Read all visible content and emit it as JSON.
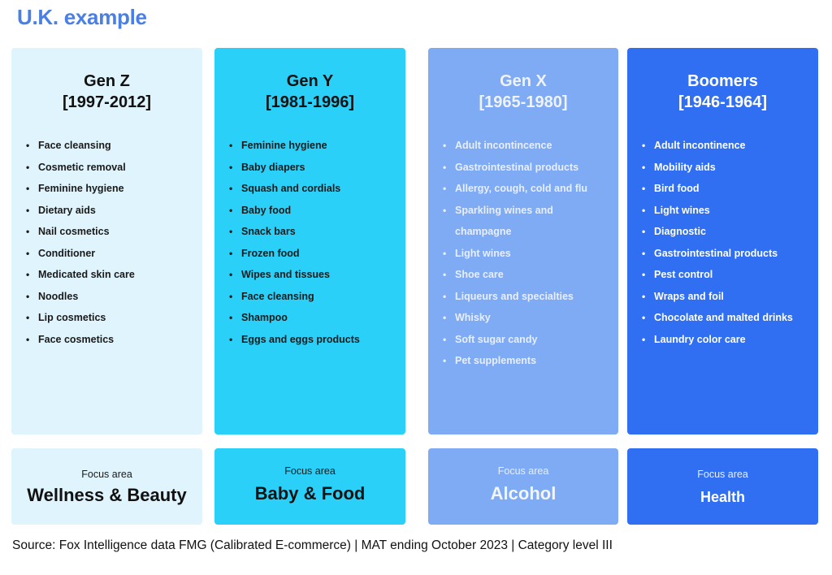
{
  "title": "U.K. example",
  "columns": [
    {
      "name": "Gen Z",
      "years": "[1997-2012]",
      "color": "#dff4fd",
      "items": [
        "Face cleansing",
        "Cosmetic removal",
        "Feminine hygiene",
        "Dietary aids",
        "Nail cosmetics",
        "Conditioner",
        "Medicated skin care",
        "Noodles",
        "Lip cosmetics",
        "Face cosmetics"
      ],
      "focus_label": "Focus area",
      "focus_value": "Wellness & Beauty"
    },
    {
      "name": "Gen Y",
      "years": "[1981-1996]",
      "color": "#2ad0f7",
      "items": [
        "Feminine hygiene",
        "Baby diapers",
        "Squash and cordials",
        "Baby food",
        "Snack bars",
        "Frozen food",
        "Wipes and tissues",
        "Face cleansing",
        "Shampoo",
        "Eggs and eggs products"
      ],
      "focus_label": "Focus area",
      "focus_value": "Baby & Food"
    },
    {
      "name": "Gen X",
      "years": "[1965-1980]",
      "color": "#7faaf4",
      "items": [
        "Adult incontincence",
        "Gastrointestinal products",
        "Allergy, cough, cold and flu",
        "Sparkling wines and",
        "champagne",
        "Light wines",
        "Shoe care",
        "Liqueurs and specialties",
        "Whisky",
        "Soft sugar candy",
        "Pet supplements"
      ],
      "focus_label": "Focus area",
      "focus_value": "Alcohol"
    },
    {
      "name": "Boomers",
      "years": "[1946-1964]",
      "color": "#306ef2",
      "items": [
        "Adult incontinence",
        "Mobility aids",
        "Bird food",
        "Light wines",
        "Diagnostic",
        "Gastrointestinal products",
        "Pest control",
        "Wraps and foil",
        "Chocolate and malted drinks",
        "Laundry color care"
      ],
      "focus_label": "Focus area",
      "focus_value": "Health"
    }
  ],
  "source": "Source: Fox Intelligence data FMG (Calibrated E-commerce) | MAT ending October 2023 | Category level III",
  "bullet_glyph": "•"
}
